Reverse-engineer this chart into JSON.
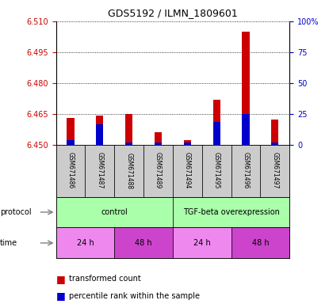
{
  "title": "GDS5192 / ILMN_1809601",
  "samples": [
    "GSM671486",
    "GSM671487",
    "GSM671488",
    "GSM671489",
    "GSM671494",
    "GSM671495",
    "GSM671496",
    "GSM671497"
  ],
  "red_values": [
    6.463,
    6.464,
    6.465,
    6.456,
    6.452,
    6.472,
    6.505,
    6.462
  ],
  "blue_values": [
    6.452,
    6.46,
    6.451,
    6.451,
    6.451,
    6.461,
    6.465,
    6.451
  ],
  "ymin": 6.45,
  "ymax": 6.51,
  "yticks": [
    6.45,
    6.465,
    6.48,
    6.495,
    6.51
  ],
  "right_yticklabels": [
    "0",
    "25",
    "50",
    "75",
    "100%"
  ],
  "right_pct": [
    0,
    25,
    50,
    75,
    100
  ],
  "red_color": "#cc0000",
  "blue_color": "#0000cc",
  "protocol_groups": [
    {
      "label": "control",
      "start": 0,
      "end": 4,
      "color": "#aaffaa"
    },
    {
      "label": "TGF-beta overexpression",
      "start": 4,
      "end": 8,
      "color": "#aaffaa"
    }
  ],
  "time_groups": [
    {
      "label": "24 h",
      "start": 0,
      "end": 2,
      "color": "#ee88ee"
    },
    {
      "label": "48 h",
      "start": 2,
      "end": 4,
      "color": "#cc44cc"
    },
    {
      "label": "24 h",
      "start": 4,
      "end": 6,
      "color": "#ee88ee"
    },
    {
      "label": "48 h",
      "start": 6,
      "end": 8,
      "color": "#cc44cc"
    }
  ],
  "bar_width": 0.25,
  "sample_box_color": "#cccccc",
  "left_label_color": "#cc0000",
  "right_label_color": "#0000cc"
}
